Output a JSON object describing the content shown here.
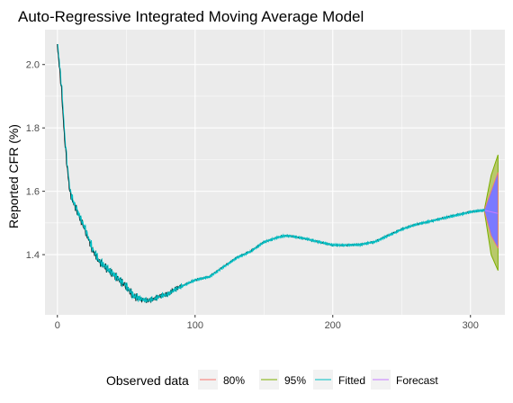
{
  "chart_data": {
    "type": "line",
    "title": "Auto-Regressive Integrated Moving Average Model",
    "xlabel": "",
    "ylabel": "Reported CFR (%)",
    "xlim": [
      -9,
      325
    ],
    "ylim": [
      1.21,
      2.11
    ],
    "x_ticks": [
      0,
      100,
      200,
      300
    ],
    "y_ticks": [
      1.4,
      1.6,
      1.8,
      2.0
    ],
    "y_tick_labels": [
      "1.4",
      "1.6",
      "1.8",
      "2.0"
    ],
    "grid": true,
    "legend_position": "bottom",
    "legend_title": "Observed data",
    "legend": [
      "80%",
      "95%",
      "Fitted",
      "Forecast"
    ],
    "colors": {
      "panel": "#ebebeb",
      "grid": "#ffffff",
      "observed": "#000000",
      "ci80": "#f8766d",
      "ci95": "#7cae00",
      "fitted": "#00bfc4",
      "forecast": "#c77cff",
      "band80_fill": "#7a7aff",
      "band95_fill": "#b8c96b"
    },
    "observed_anchors": [
      [
        0,
        2.06
      ],
      [
        3,
        1.92
      ],
      [
        5,
        1.78
      ],
      [
        7,
        1.68
      ],
      [
        9,
        1.6
      ],
      [
        12,
        1.56
      ],
      [
        16,
        1.52
      ],
      [
        20,
        1.48
      ],
      [
        25,
        1.42
      ],
      [
        30,
        1.38
      ],
      [
        35,
        1.36
      ],
      [
        40,
        1.34
      ],
      [
        45,
        1.32
      ],
      [
        50,
        1.3
      ],
      [
        55,
        1.27
      ],
      [
        60,
        1.26
      ],
      [
        65,
        1.255
      ],
      [
        70,
        1.26
      ],
      [
        75,
        1.27
      ],
      [
        80,
        1.275
      ],
      [
        85,
        1.29
      ],
      [
        90,
        1.3
      ],
      [
        95,
        1.31
      ],
      [
        100,
        1.32
      ],
      [
        110,
        1.33
      ],
      [
        120,
        1.36
      ],
      [
        130,
        1.39
      ],
      [
        140,
        1.41
      ],
      [
        150,
        1.44
      ],
      [
        160,
        1.455
      ],
      [
        165,
        1.46
      ],
      [
        170,
        1.458
      ],
      [
        180,
        1.45
      ],
      [
        190,
        1.44
      ],
      [
        200,
        1.43
      ],
      [
        210,
        1.43
      ],
      [
        220,
        1.432
      ],
      [
        230,
        1.44
      ],
      [
        240,
        1.46
      ],
      [
        250,
        1.48
      ],
      [
        260,
        1.495
      ],
      [
        270,
        1.505
      ],
      [
        280,
        1.515
      ],
      [
        290,
        1.525
      ],
      [
        300,
        1.535
      ],
      [
        305,
        1.538
      ],
      [
        310,
        1.54
      ]
    ],
    "forecast": {
      "x": [
        310,
        315,
        320
      ],
      "mean": [
        1.54,
        1.535,
        1.53
      ],
      "lo80": [
        1.54,
        1.46,
        1.42
      ],
      "hi80": [
        1.54,
        1.6,
        1.66
      ],
      "lo95": [
        1.54,
        1.4,
        1.35
      ],
      "hi95": [
        1.54,
        1.65,
        1.715
      ]
    }
  }
}
